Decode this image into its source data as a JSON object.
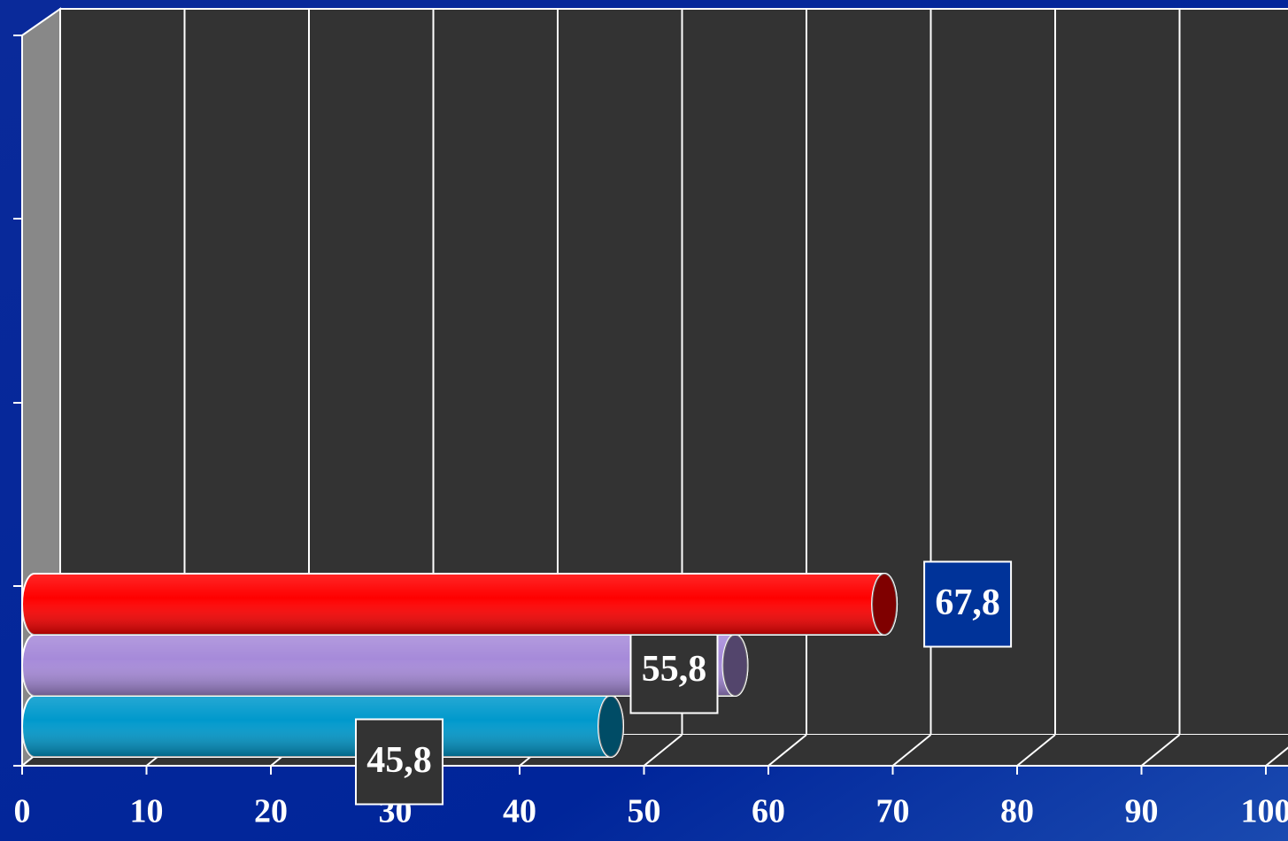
{
  "chart_data": {
    "type": "bar3d",
    "series": [
      {
        "color": "#0099cc",
        "values": [
          45.8
        ],
        "value_labels": [
          "45,8"
        ],
        "label_box": "#333333"
      },
      {
        "color": "#a68ad9",
        "values": [
          55.8
        ],
        "value_labels": [
          "55,8"
        ],
        "label_box": "#333333"
      },
      {
        "color": "#ff0000",
        "values": [
          67.8
        ],
        "value_labels": [
          "67,8"
        ],
        "label_box": "#003399"
      }
    ],
    "xlim": [
      0,
      100
    ],
    "xticks": [
      0,
      10,
      20,
      30,
      40,
      50,
      60,
      70,
      80,
      90,
      100
    ],
    "grid": true
  }
}
